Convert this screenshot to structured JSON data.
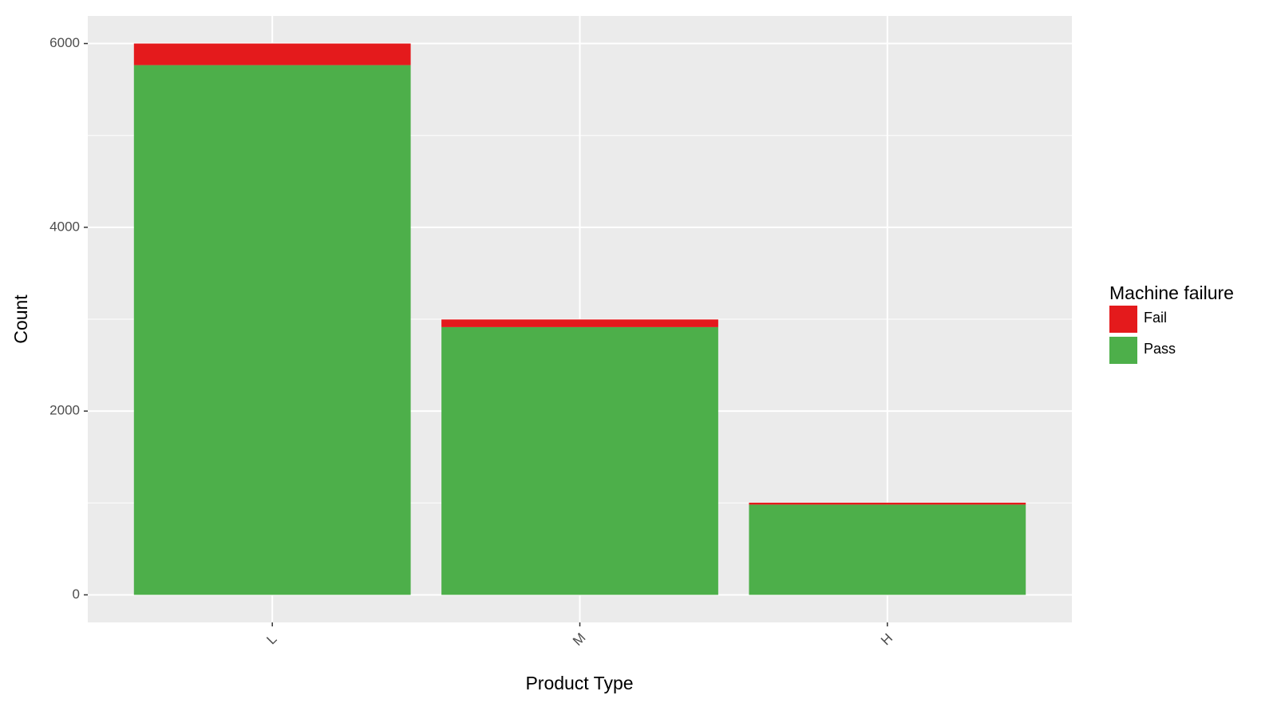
{
  "chart_data": {
    "type": "stacked_bar",
    "x_label": "Product Type",
    "y_label": "Count",
    "categories": [
      "L",
      "M",
      "H"
    ],
    "series": [
      {
        "name": "Fail",
        "color": "#e41a1c",
        "values": [
          235,
          83,
          21
        ]
      },
      {
        "name": "Pass",
        "color": "#4daf4a",
        "values": [
          5765,
          2914,
          982
        ]
      }
    ],
    "legend_title": "Machine failure",
    "legend_position": "right",
    "ylim": [
      -300,
      6300
    ],
    "yticks": [
      0,
      2000,
      4000,
      6000
    ],
    "yminor": [
      1000,
      3000,
      5000
    ],
    "grid": true
  }
}
